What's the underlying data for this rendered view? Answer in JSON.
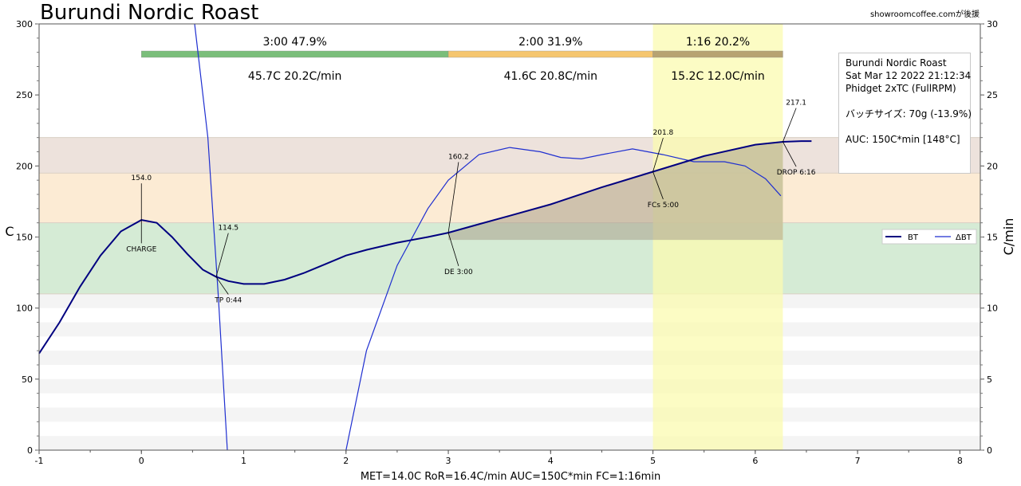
{
  "title": "Burundi Nordic Roast",
  "credit": "showroomcoffee.comが後援",
  "info_box": {
    "line1": "Burundi Nordic Roast",
    "line2": "Sat Mar 12 2022 21:12:34",
    "line3": "Phidget 2xTC (FullRPM)",
    "line4": "バッチサイズ: 70g (-13.9%)",
    "line5": "AUC: 150C*min [148°C]"
  },
  "footer": "MET=14.0C   RoR=16.4C/min   AUC=150C*min   FC=1:16min",
  "colors": {
    "bt": "#000080",
    "delta_bt": "#1f2fd0",
    "phase_dry": "#6cb86c",
    "phase_maillard": "#f5c060",
    "phase_dev": "#b09a6a",
    "dev_highlight": "#fbfbb0",
    "band_green": "#d5ebd5",
    "band_orange": "#fcebd4",
    "band_brown": "#ede2dc",
    "auc_fill": "#a9a08c"
  },
  "chart_data": {
    "type": "line",
    "xlim": [
      -1,
      8.2
    ],
    "ylim_left": [
      0,
      300
    ],
    "ylim_right": [
      0,
      30
    ],
    "ylabel_left": "C",
    "ylabel_right": "C/min",
    "x_ticks": [
      "-1",
      "0",
      "1",
      "2",
      "3",
      "4",
      "5",
      "6",
      "7",
      "8"
    ],
    "y_left_ticks": [
      "0",
      "50",
      "100",
      "150",
      "200",
      "250",
      "300"
    ],
    "y_right_ticks": [
      "0",
      "5",
      "10",
      "15",
      "20",
      "25",
      "30"
    ],
    "phases": [
      {
        "label_top": "3:00  47.9%",
        "label_bottom": "45.7C  20.2C/min",
        "x_start": 0,
        "x_end": 3.0,
        "color_key": "phase_dry"
      },
      {
        "label_top": "2:00  31.9%",
        "label_bottom": "41.6C  20.8C/min",
        "x_start": 3.0,
        "x_end": 5.0,
        "color_key": "phase_maillard"
      },
      {
        "label_top": "1:16  20.2%",
        "label_bottom": "15.2C  12.0C/min",
        "x_start": 5.0,
        "x_end": 6.27,
        "color_key": "phase_dev"
      }
    ],
    "bands": [
      {
        "y_from": 110,
        "y_to": 160,
        "color_key": "band_green"
      },
      {
        "y_from": 160,
        "y_to": 195,
        "color_key": "band_orange"
      },
      {
        "y_from": 195,
        "y_to": 220,
        "color_key": "band_brown"
      }
    ],
    "dev_window": [
      5.0,
      6.27
    ],
    "series": [
      {
        "name": "BT",
        "axis": "left",
        "points": [
          [
            -1,
            68
          ],
          [
            -0.8,
            90
          ],
          [
            -0.6,
            115
          ],
          [
            -0.4,
            137
          ],
          [
            -0.2,
            154
          ],
          [
            0,
            162
          ],
          [
            0.15,
            160
          ],
          [
            0.3,
            150
          ],
          [
            0.45,
            138
          ],
          [
            0.6,
            127
          ],
          [
            0.73,
            122
          ],
          [
            0.85,
            119
          ],
          [
            1.0,
            117
          ],
          [
            1.2,
            117
          ],
          [
            1.4,
            120
          ],
          [
            1.6,
            125
          ],
          [
            1.8,
            131
          ],
          [
            2.0,
            137
          ],
          [
            2.2,
            141
          ],
          [
            2.5,
            146
          ],
          [
            2.8,
            150
          ],
          [
            3.0,
            153
          ],
          [
            3.3,
            159
          ],
          [
            3.6,
            165
          ],
          [
            4.0,
            173
          ],
          [
            4.5,
            185
          ],
          [
            5.0,
            196
          ],
          [
            5.5,
            207
          ],
          [
            6.0,
            215
          ],
          [
            6.27,
            217
          ],
          [
            6.45,
            217.5
          ],
          [
            6.55,
            217.5
          ]
        ]
      },
      {
        "name": "ΔBT",
        "axis": "right",
        "points": [
          [
            0.52,
            30
          ],
          [
            0.65,
            22
          ],
          [
            0.75,
            11
          ],
          [
            0.84,
            0
          ],
          [
            null,
            null
          ],
          [
            2.0,
            0
          ],
          [
            2.2,
            7
          ],
          [
            2.5,
            13
          ],
          [
            2.8,
            17
          ],
          [
            3.0,
            19
          ],
          [
            3.3,
            20.8
          ],
          [
            3.6,
            21.3
          ],
          [
            3.9,
            21
          ],
          [
            4.1,
            20.6
          ],
          [
            4.3,
            20.5
          ],
          [
            4.5,
            20.8
          ],
          [
            4.8,
            21.2
          ],
          [
            5.1,
            20.8
          ],
          [
            5.4,
            20.3
          ],
          [
            5.7,
            20.3
          ],
          [
            5.9,
            20.0
          ],
          [
            6.1,
            19.1
          ],
          [
            6.25,
            17.9
          ]
        ]
      }
    ],
    "annotations": [
      {
        "value": "154.0",
        "label": "CHARGE",
        "x": 0.0,
        "y": 162,
        "text_x": 0.0,
        "value_y": 190,
        "label_y": 140
      },
      {
        "value": "114.5",
        "label": "TP 0:44",
        "x": 0.73,
        "y": 122,
        "text_x": 0.85,
        "value_y": 155,
        "label_y": 104
      },
      {
        "value": "160.2",
        "label": "DE 3:00",
        "x": 3.0,
        "y": 153,
        "text_x": 3.1,
        "value_y": 205,
        "label_y": 124
      },
      {
        "value": "201.8",
        "label": "FCs 5:00",
        "x": 5.0,
        "y": 196,
        "text_x": 5.1,
        "value_y": 222,
        "label_y": 171
      },
      {
        "value": "217.1",
        "label": "DROP 6:16",
        "x": 6.27,
        "y": 217,
        "text_x": 6.4,
        "value_y": 243,
        "label_y": 194
      }
    ]
  },
  "legend": {
    "bt": "BT",
    "delta_bt": "ΔBT"
  }
}
